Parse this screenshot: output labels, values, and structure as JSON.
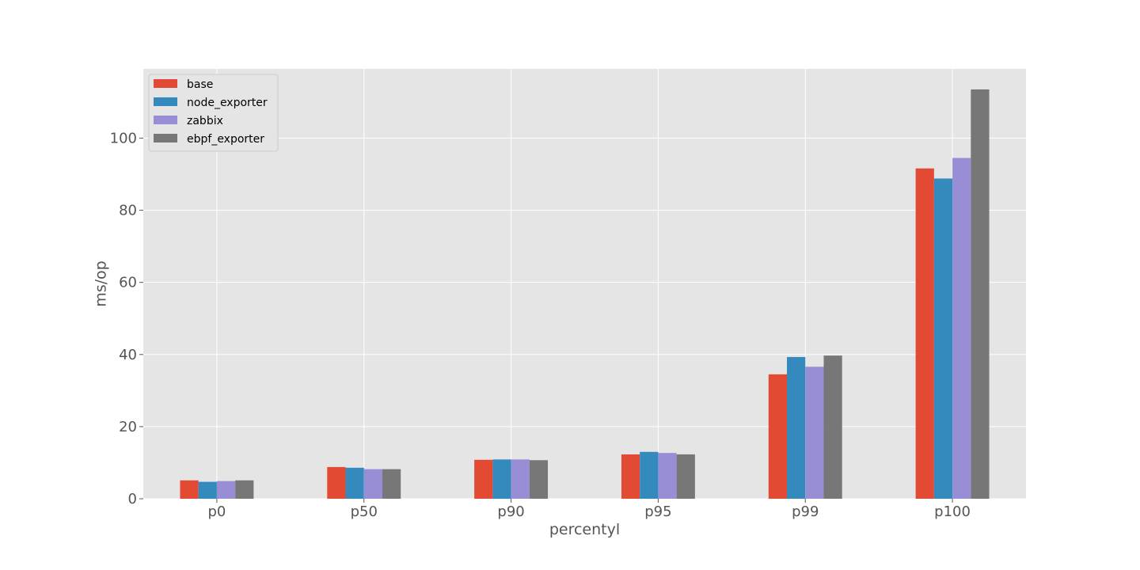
{
  "chart_data": {
    "type": "bar",
    "categories": [
      "p0",
      "p50",
      "p90",
      "p95",
      "p99",
      "p100"
    ],
    "series": [
      {
        "name": "base",
        "color": "#E24A33",
        "values": [
          5.1,
          8.8,
          10.8,
          12.3,
          34.5,
          91.6
        ]
      },
      {
        "name": "node_exporter",
        "color": "#348ABD",
        "values": [
          4.7,
          8.6,
          10.9,
          13.0,
          39.3,
          88.8
        ]
      },
      {
        "name": "zabbix",
        "color": "#988ED5",
        "values": [
          4.9,
          8.2,
          10.9,
          12.7,
          36.6,
          94.5
        ]
      },
      {
        "name": "ebpf_exporter",
        "color": "#777777",
        "values": [
          5.1,
          8.2,
          10.7,
          12.3,
          39.7,
          113.5
        ]
      }
    ],
    "title": "",
    "xlabel": "percentyl",
    "ylabel": "ms/op",
    "ylim": [
      0,
      119.2
    ],
    "yticks": [
      0,
      20,
      40,
      60,
      80,
      100
    ],
    "grid": true,
    "legend_position": "top-left",
    "background_color": "#E5E5E5",
    "grid_color": "#FFFFFF"
  }
}
